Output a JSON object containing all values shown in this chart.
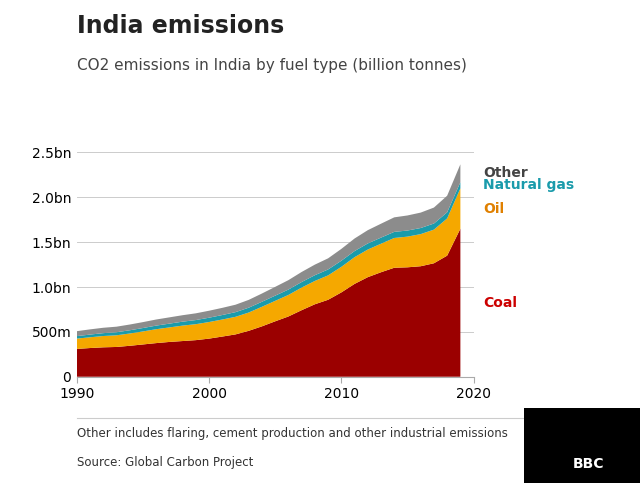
{
  "title": "India emissions",
  "subtitle": "CO2 emissions in India by fuel type (billion tonnes)",
  "footnote": "Other includes flaring, cement production and other industrial emissions",
  "source": "Source: Global Carbon Project",
  "years": [
    1990,
    1991,
    1992,
    1993,
    1994,
    1995,
    1996,
    1997,
    1998,
    1999,
    2000,
    2001,
    2002,
    2003,
    2004,
    2005,
    2006,
    2007,
    2008,
    2009,
    2010,
    2011,
    2012,
    2013,
    2014,
    2015,
    2016,
    2017,
    2018,
    2019
  ],
  "coal": [
    0.31,
    0.32,
    0.328,
    0.332,
    0.345,
    0.36,
    0.375,
    0.388,
    0.398,
    0.408,
    0.425,
    0.448,
    0.472,
    0.512,
    0.562,
    0.618,
    0.672,
    0.742,
    0.808,
    0.858,
    0.94,
    1.035,
    1.11,
    1.165,
    1.215,
    1.22,
    1.232,
    1.265,
    1.35,
    1.65
  ],
  "oil": [
    0.115,
    0.12,
    0.126,
    0.13,
    0.137,
    0.145,
    0.155,
    0.162,
    0.172,
    0.178,
    0.185,
    0.19,
    0.196,
    0.204,
    0.218,
    0.228,
    0.24,
    0.252,
    0.26,
    0.272,
    0.285,
    0.298,
    0.308,
    0.318,
    0.332,
    0.342,
    0.358,
    0.375,
    0.415,
    0.45
  ],
  "natural_gas": [
    0.028,
    0.03,
    0.032,
    0.034,
    0.036,
    0.038,
    0.04,
    0.042,
    0.044,
    0.046,
    0.048,
    0.05,
    0.052,
    0.054,
    0.056,
    0.058,
    0.06,
    0.062,
    0.064,
    0.066,
    0.068,
    0.068,
    0.068,
    0.068,
    0.068,
    0.068,
    0.068,
    0.068,
    0.068,
    0.068
  ],
  "other": [
    0.055,
    0.058,
    0.06,
    0.062,
    0.064,
    0.066,
    0.068,
    0.07,
    0.072,
    0.075,
    0.078,
    0.08,
    0.083,
    0.087,
    0.092,
    0.098,
    0.105,
    0.112,
    0.118,
    0.124,
    0.132,
    0.14,
    0.148,
    0.155,
    0.162,
    0.168,
    0.172,
    0.178,
    0.185,
    0.2
  ],
  "coal_color": "#9b0000",
  "oil_color": "#f5a800",
  "gas_color": "#1a9bab",
  "other_color": "#8c8c8c",
  "label_coal": "Coal",
  "label_oil": "Oil",
  "label_gas": "Natural gas",
  "label_other": "Other",
  "coal_label_color": "#cc0000",
  "oil_label_color": "#e08000",
  "gas_label_color": "#1a9bab",
  "other_label_color": "#444444",
  "ylim": [
    0,
    2.8
  ],
  "yticks": [
    0,
    0.5,
    1.0,
    1.5,
    2.0,
    2.5
  ],
  "ytick_labels": [
    "0",
    "500m",
    "1.0bn",
    "1.5bn",
    "2.0bn",
    "2.5bn"
  ],
  "xticks": [
    1990,
    2000,
    2010,
    2020
  ],
  "title_fontsize": 17,
  "subtitle_fontsize": 11,
  "tick_fontsize": 10,
  "label_fontsize": 10
}
